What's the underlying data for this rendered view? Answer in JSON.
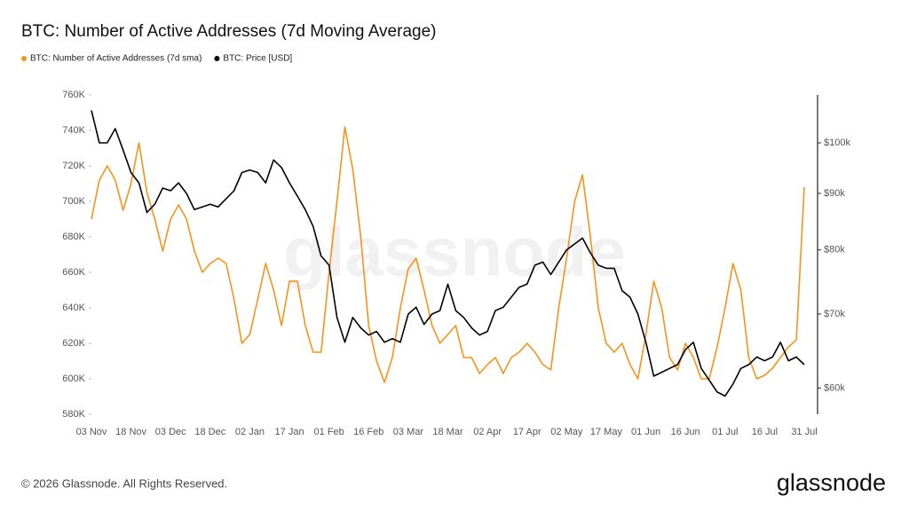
{
  "chart_data": {
    "type": "line",
    "title": "BTC: Number of Active Addresses (7d Moving Average)",
    "watermark": "glassnode",
    "footer": "© 2026 Glassnode. All Rights Reserved.",
    "logo": "glassnode",
    "legend": "top-left",
    "grid": false,
    "categories": [
      "03 Nov",
      null,
      null,
      null,
      null,
      "18 Nov",
      null,
      null,
      null,
      null,
      "03 Dec",
      null,
      null,
      null,
      null,
      "18 Dec",
      null,
      null,
      null,
      null,
      "02 Jan",
      null,
      null,
      null,
      null,
      "17 Jan",
      null,
      null,
      null,
      null,
      "01 Feb",
      null,
      null,
      null,
      null,
      "16 Feb",
      null,
      null,
      null,
      null,
      "03 Mar",
      null,
      null,
      null,
      null,
      "18 Mar",
      null,
      null,
      null,
      null,
      "02 Apr",
      null,
      null,
      null,
      null,
      "17 Apr",
      null,
      null,
      null,
      null,
      "02 May",
      null,
      null,
      null,
      null,
      "17 May",
      null,
      null,
      null,
      null,
      "01 Jun",
      null,
      null,
      null,
      null,
      "16 Jun",
      null,
      null,
      null,
      null,
      "01 Jul",
      null,
      null,
      null,
      null,
      "16 Jul",
      null,
      null,
      null,
      null,
      "31 Jul"
    ],
    "ylim": [
      580000,
      760000
    ],
    "yticks": [
      {
        "value": 580000,
        "label": "580K"
      },
      {
        "value": 600000,
        "label": "600K"
      },
      {
        "value": 620000,
        "label": "620K"
      },
      {
        "value": 640000,
        "label": "640K"
      },
      {
        "value": 660000,
        "label": "660K"
      },
      {
        "value": 680000,
        "label": "680K"
      },
      {
        "value": 700000,
        "label": "700K"
      },
      {
        "value": 720000,
        "label": "720K"
      },
      {
        "value": 740000,
        "label": "740K"
      },
      {
        "value": 760000,
        "label": "760K"
      }
    ],
    "y2lim": [
      56800,
      110500
    ],
    "y2scale": "log",
    "y2ticks": [
      {
        "value": 60000,
        "label": "$60k"
      },
      {
        "value": 70000,
        "label": "$70k"
      },
      {
        "value": 80000,
        "label": "$80k"
      },
      {
        "value": 90000,
        "label": "$90k"
      },
      {
        "value": 100000,
        "label": "$100k"
      }
    ],
    "series": [
      {
        "name": "BTC: Number of Active Addresses (7d sma)",
        "color": "#f7931a",
        "axis": "y",
        "values": [
          690000,
          712000,
          720000,
          712000,
          695000,
          710000,
          733000,
          705000,
          690000,
          672000,
          690000,
          698000,
          690000,
          672000,
          660000,
          665000,
          668000,
          665000,
          645000,
          620000,
          625000,
          645000,
          665000,
          650000,
          630000,
          655000,
          655000,
          630000,
          615000,
          615000,
          660000,
          700000,
          742000,
          718000,
          680000,
          630000,
          610000,
          598000,
          612000,
          640000,
          662000,
          668000,
          650000,
          630000,
          620000,
          625000,
          630000,
          612000,
          612000,
          603000,
          608000,
          612000,
          603000,
          612000,
          615000,
          620000,
          615000,
          608000,
          605000,
          640000,
          668000,
          700000,
          715000,
          680000,
          640000,
          620000,
          615000,
          620000,
          608000,
          600000,
          625000,
          655000,
          640000,
          612000,
          605000,
          620000,
          612000,
          600000,
          600000,
          618000,
          640000,
          665000,
          650000,
          612000,
          600000,
          602000,
          606000,
          612000,
          618000,
          622000,
          708000
        ]
      },
      {
        "name": "BTC: Price [USD]",
        "color": "#000000",
        "axis": "y2",
        "values": [
          107000,
          100000,
          100000,
          103000,
          98500,
          94000,
          92000,
          86500,
          88000,
          91000,
          90500,
          92000,
          90000,
          87000,
          87500,
          88000,
          87500,
          89000,
          90500,
          94000,
          94500,
          94000,
          92000,
          96500,
          95000,
          92000,
          89500,
          87000,
          84000,
          79000,
          77500,
          69500,
          66000,
          69500,
          68000,
          67000,
          67500,
          66000,
          66500,
          66000,
          70000,
          71000,
          68500,
          70000,
          70500,
          74500,
          70500,
          69500,
          68000,
          67000,
          67500,
          70500,
          71000,
          72500,
          74000,
          74500,
          77500,
          78000,
          76000,
          78000,
          80000,
          81000,
          82000,
          79500,
          77500,
          77000,
          77000,
          73500,
          72500,
          70000,
          66000,
          61500,
          62000,
          62500,
          63000,
          65000,
          66000,
          62500,
          61000,
          59500,
          59000,
          60500,
          62500,
          63000,
          64000,
          63500,
          64000,
          66000,
          63500,
          64000,
          63000
        ]
      }
    ]
  }
}
